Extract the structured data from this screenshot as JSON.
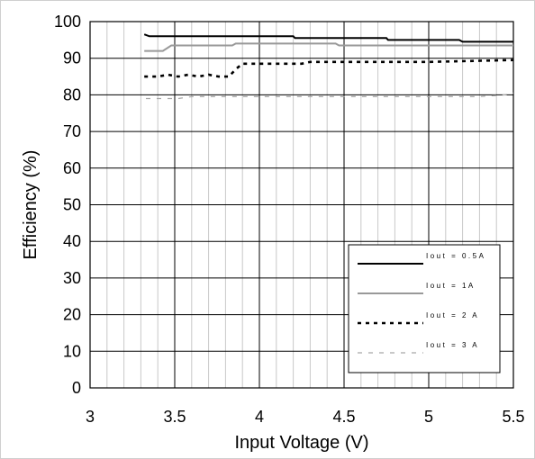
{
  "chart_data": {
    "type": "line",
    "xlabel": "Input Voltage (V)",
    "ylabel": "Efficiency (%)",
    "xlim": [
      3,
      5.5
    ],
    "ylim": [
      0,
      100
    ],
    "x_ticks": [
      "3",
      "3.5",
      "4",
      "4.5",
      "5",
      "5.5"
    ],
    "y_ticks": [
      "0",
      "10",
      "20",
      "30",
      "40",
      "50",
      "60",
      "70",
      "80",
      "90",
      "100"
    ],
    "minor_grid_x_step": 0.1,
    "major_grid_y_step": 10,
    "grid": true,
    "legend_position": "bottom-right",
    "series": [
      {
        "name": "Iout = 0.5A",
        "color": "#000000",
        "style": "solid",
        "x": [
          3.32,
          3.35,
          3.5,
          4.0,
          4.2,
          4.21,
          4.5,
          4.75,
          4.76,
          5.0,
          5.18,
          5.2,
          5.5
        ],
        "y": [
          96.5,
          96.0,
          96.0,
          96.0,
          96.0,
          95.5,
          95.5,
          95.5,
          95.0,
          95.0,
          95.0,
          94.5,
          94.5
        ]
      },
      {
        "name": "Iout = 1A",
        "color": "#999999",
        "style": "solid",
        "x": [
          3.32,
          3.43,
          3.48,
          3.5,
          3.84,
          3.86,
          4.0,
          4.45,
          4.47,
          4.5,
          5.5
        ],
        "y": [
          92.0,
          92.0,
          93.5,
          93.5,
          93.5,
          94.0,
          94.0,
          94.0,
          93.5,
          93.5,
          93.5
        ]
      },
      {
        "name": "Iout = 2 A",
        "color": "#000000",
        "style": "dotted",
        "x": [
          3.32,
          3.4,
          3.46,
          3.52,
          3.58,
          3.64,
          3.7,
          3.76,
          3.82,
          3.86,
          3.9,
          4.0,
          4.25,
          4.3,
          4.5,
          5.0,
          5.5
        ],
        "y": [
          85.0,
          85.0,
          85.5,
          85.0,
          85.5,
          85.0,
          85.5,
          85.0,
          85.0,
          87.0,
          88.5,
          88.5,
          88.5,
          89.0,
          89.0,
          89.0,
          89.5
        ]
      },
      {
        "name": "Iout = 3 A",
        "color": "#a6a6a6",
        "style": "dashed",
        "x": [
          3.33,
          3.45,
          3.52,
          3.6,
          3.7,
          3.8,
          3.9,
          4.0,
          4.5,
          5.0,
          5.3,
          5.45,
          5.5
        ],
        "y": [
          79.0,
          79.0,
          79.0,
          79.5,
          79.5,
          79.5,
          79.5,
          79.5,
          79.5,
          79.5,
          79.5,
          80.0,
          80.5
        ]
      }
    ]
  }
}
